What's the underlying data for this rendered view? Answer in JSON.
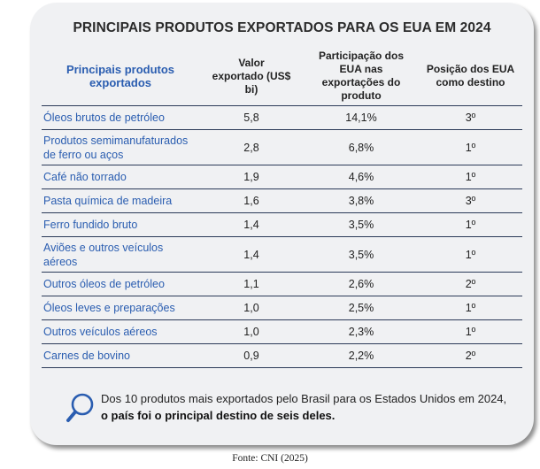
{
  "title": "PRINCIPAIS PRODUTOS EXPORTADOS PARA OS EUA EM 2024",
  "columns": [
    "Principais produtos exportados",
    "Valor exportado (US$ bi)",
    "Participação dos EUA nas exportações do produto",
    "Posição dos EUA como destino"
  ],
  "rows": [
    {
      "produto": "Óleos brutos de petróleo",
      "valor": "5,8",
      "participacao": "14,1%",
      "posicao": "3º"
    },
    {
      "produto": "Produtos semimanufaturados de ferro ou aços",
      "valor": "2,8",
      "participacao": "6,8%",
      "posicao": "1º"
    },
    {
      "produto": "Café não torrado",
      "valor": "1,9",
      "participacao": "4,6%",
      "posicao": "1º"
    },
    {
      "produto": "Pasta química de madeira",
      "valor": "1,6",
      "participacao": "3,8%",
      "posicao": "3º"
    },
    {
      "produto": "Ferro fundido bruto",
      "valor": "1,4",
      "participacao": "3,5%",
      "posicao": "1º"
    },
    {
      "produto": "Aviões e outros veículos aéreos",
      "valor": "1,4",
      "participacao": "3,5%",
      "posicao": "1º"
    },
    {
      "produto": "Outros óleos de petróleo",
      "valor": "1,1",
      "participacao": "2,6%",
      "posicao": "2º"
    },
    {
      "produto": "Óleos leves e preparações",
      "valor": "1,0",
      "participacao": "2,5%",
      "posicao": "1º"
    },
    {
      "produto": "Outros veículos aéreos",
      "valor": "1,0",
      "participacao": "2,3%",
      "posicao": "1º"
    },
    {
      "produto": "Carnes de bovino",
      "valor": "0,9",
      "participacao": "2,2%",
      "posicao": "2º"
    }
  ],
  "note": {
    "text": "Dos 10 produtos mais exportados pelo Brasil para os Estados Unidos em 2024,",
    "bold": "o país foi o principal destino de seis deles."
  },
  "source": "Fonte: CNI (2025)",
  "colors": {
    "accent": "#2a5db0",
    "card": "#f0f1f3",
    "rule": "#2b3a58"
  },
  "note_icon": "magnifier-icon"
}
